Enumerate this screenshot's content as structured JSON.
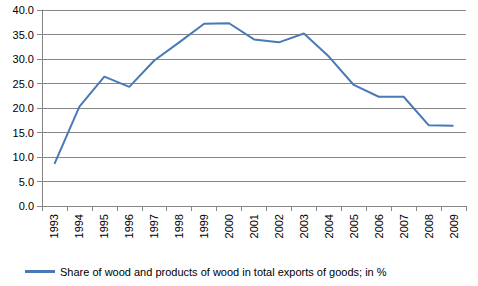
{
  "chart_data": {
    "type": "line",
    "categories": [
      "1993",
      "1994",
      "1995",
      "1996",
      "1997",
      "1998",
      "1999",
      "2000",
      "2001",
      "2002",
      "2003",
      "2004",
      "2005",
      "2006",
      "2007",
      "2008",
      "2009"
    ],
    "series": [
      {
        "name": "Share of wood and products of wood in total exports of goods; in %",
        "color": "#4a7ab5",
        "values": [
          8.6,
          20.3,
          26.4,
          24.3,
          29.7,
          33.4,
          37.2,
          37.3,
          34.0,
          33.4,
          35.2,
          30.5,
          24.7,
          22.3,
          22.3,
          16.5,
          16.4
        ]
      }
    ],
    "ylim": [
      0,
      40
    ],
    "yticks": [
      {
        "value": 0,
        "label": "0.0"
      },
      {
        "value": 5,
        "label": "5.0"
      },
      {
        "value": 10,
        "label": "10.0"
      },
      {
        "value": 15,
        "label": "15.0"
      },
      {
        "value": 20,
        "label": "20.0"
      },
      {
        "value": 25,
        "label": "25.0"
      },
      {
        "value": 30,
        "label": "30.0"
      },
      {
        "value": 35,
        "label": "35.0"
      },
      {
        "value": 40,
        "label": "40.0"
      }
    ],
    "grid": true,
    "legend": "bottom"
  }
}
